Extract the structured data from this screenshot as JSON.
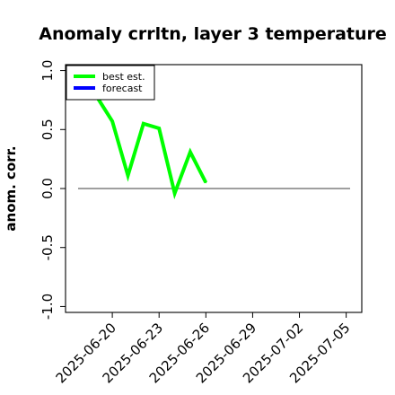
{
  "chart_data": {
    "type": "line",
    "title": "Anomaly crrltn, layer 3 temperature",
    "ylabel": "anom. corr.",
    "xlabel": "",
    "ylim": [
      -1.05,
      1.05
    ],
    "yticks": [
      -1.0,
      -0.5,
      0.0,
      0.5,
      1.0
    ],
    "ytick_labels": [
      "-1.0",
      "-0.5",
      "0.0",
      "0.5",
      "1.0"
    ],
    "x_start": "2025-06-17",
    "x_end": "2025-07-06",
    "xtick_labels": [
      "2025-06-20",
      "2025-06-23",
      "2025-06-26",
      "2025-06-29",
      "2025-07-02",
      "2025-07-05"
    ],
    "highlighted_xtick": "2025-06-26",
    "highlight_color": "#228b22",
    "zero_line": 0.0,
    "legend": {
      "placement": "top-left"
    },
    "series": [
      {
        "name": "best est.",
        "color": "#00ff00",
        "x": [
          "2025-06-19",
          "2025-06-20",
          "2025-06-21",
          "2025-06-22",
          "2025-06-23",
          "2025-06-24",
          "2025-06-25",
          "2025-06-26"
        ],
        "y": [
          0.78,
          0.57,
          0.11,
          0.55,
          0.51,
          -0.04,
          0.31,
          0.05
        ]
      },
      {
        "name": "forecast",
        "color": "#0000ff",
        "x": [],
        "y": []
      }
    ]
  }
}
